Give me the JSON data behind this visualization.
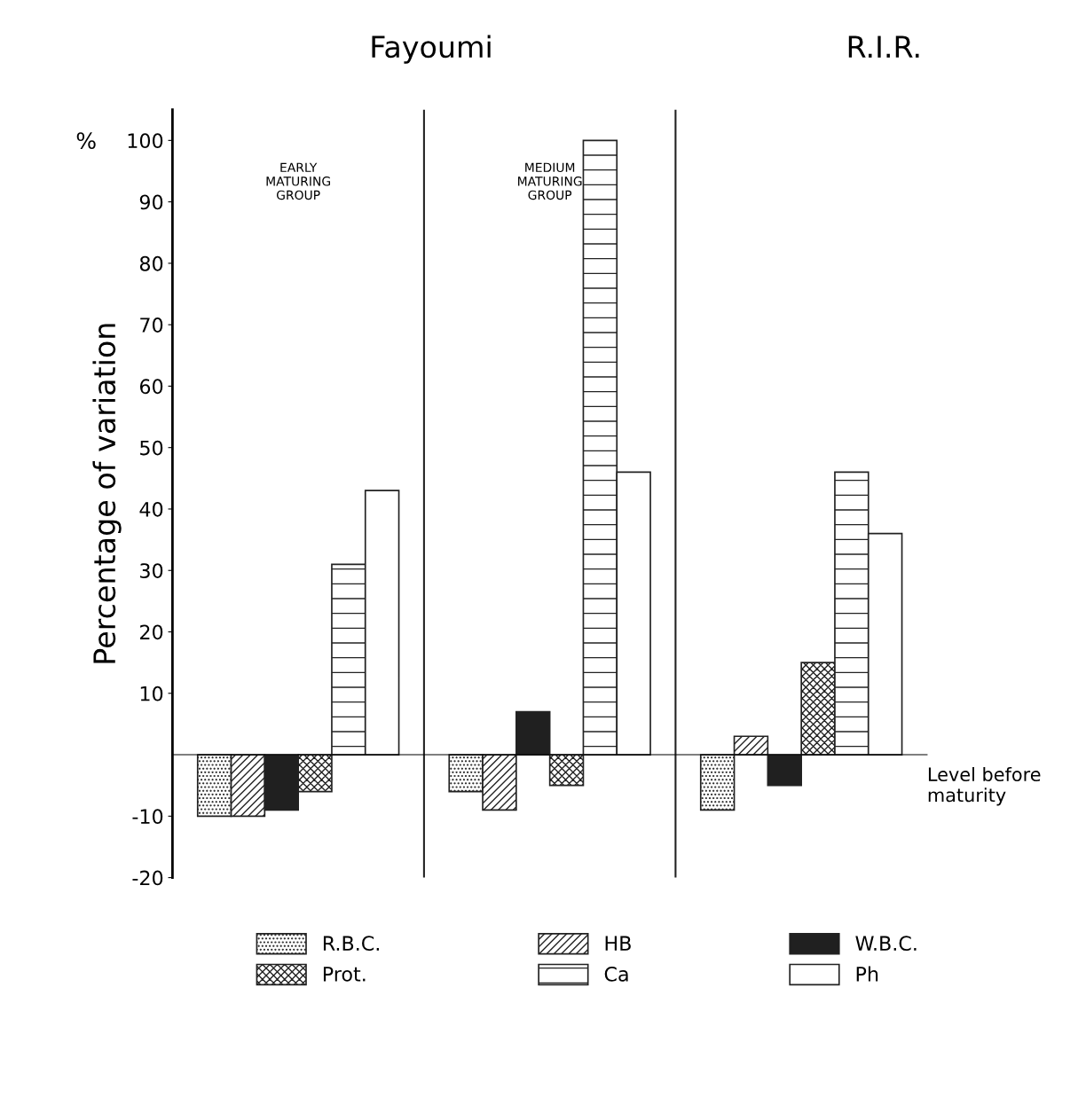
{
  "chart_data": {
    "type": "bar",
    "ylabel": "Percentage of variation",
    "categories": [
      "EARLY\nMATURING\nGROUP",
      "MEDIUM\nMATURING\nGROUP",
      null
    ],
    "series": [
      {
        "name": "R.B.C.",
        "color": "#222222",
        "values": [
          -10,
          -6,
          -9
        ]
      },
      {
        "name": "HB",
        "color": "#222222",
        "values": [
          -10,
          -9,
          3
        ]
      },
      {
        "name": "W.B.C.",
        "color": "#202020",
        "values": [
          -9,
          7,
          -5
        ]
      },
      {
        "name": "Prot.",
        "color": "#222222",
        "values": [
          -6,
          -5,
          15
        ]
      },
      {
        "name": "Ca",
        "color": "#222222",
        "values": [
          31,
          100,
          46
        ]
      },
      {
        "name": "Ph",
        "color": "#ffffff",
        "values": [
          43,
          46,
          36
        ]
      }
    ],
    "ylim": [
      -20,
      105
    ],
    "yticks": [
      -20,
      -10,
      10,
      20,
      30,
      40,
      50,
      60,
      70,
      80,
      90,
      100
    ],
    "legend": "bottom",
    "grid": false,
    "annotations": [
      "Fayoumi",
      "R.I.R.",
      "%",
      "Level before\nmaturity"
    ]
  }
}
